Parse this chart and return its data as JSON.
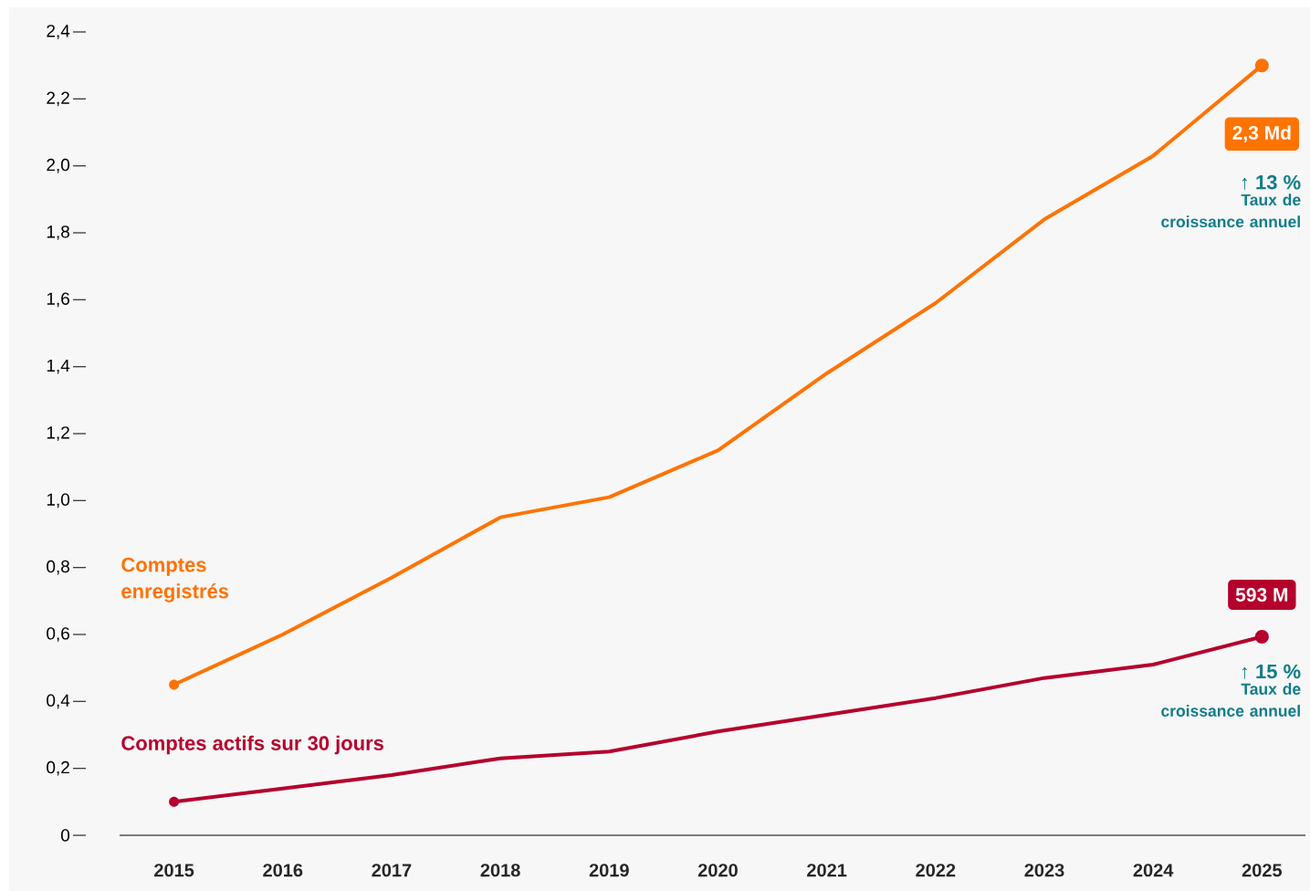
{
  "chart_data": {
    "type": "line",
    "categories": [
      "2015",
      "2016",
      "2017",
      "2018",
      "2019",
      "2020",
      "2021",
      "2022",
      "2023",
      "2024",
      "2025"
    ],
    "series": [
      {
        "name": "Comptes enregistrés",
        "color": "#ff7300",
        "values": [
          0.45,
          0.6,
          0.77,
          0.95,
          1.01,
          1.15,
          1.38,
          1.59,
          1.84,
          2.03,
          2.3
        ]
      },
      {
        "name": "Comptes actifs sur 30 jours",
        "color": "#b5002d",
        "values": [
          0.1,
          0.14,
          0.18,
          0.23,
          0.25,
          0.31,
          0.36,
          0.41,
          0.47,
          0.51,
          0.593
        ]
      }
    ],
    "ylim": [
      0,
      2.4
    ],
    "yticks": [
      0,
      {
        "value": 0.2,
        "label": "0,2"
      },
      {
        "value": 0.4,
        "label": "0,4"
      },
      {
        "value": 0.6,
        "label": "0,6"
      },
      {
        "value": 0.8,
        "label": "0,8"
      },
      {
        "value": 1.0,
        "label": "1,0"
      },
      {
        "value": 1.2,
        "label": "1,2"
      },
      {
        "value": 1.4,
        "label": "1,4"
      },
      {
        "value": 1.6,
        "label": "1,6"
      },
      {
        "value": 1.8,
        "label": "1,8"
      },
      {
        "value": 2.0,
        "label": "2,0"
      },
      {
        "value": 2.2,
        "label": "2,2"
      },
      {
        "value": 2.4,
        "label": "2,4"
      }
    ],
    "annotations": [
      "2,3 Md",
      "↑ 13 %",
      "Taux de croissance annuel",
      "593 M",
      "↑ 15 %",
      "Taux de croissance annuel"
    ],
    "grid": false,
    "legend": false,
    "line_style": "solid"
  }
}
